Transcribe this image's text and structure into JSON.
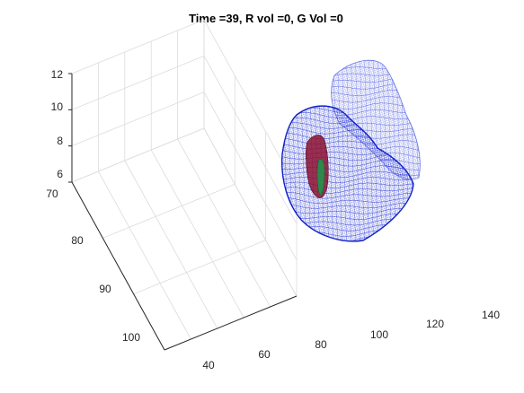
{
  "chart_data": {
    "type": "surface-3d",
    "title": "Time =39, R vol =0, G Vol =0",
    "x_ticks": [
      "40",
      "60",
      "80",
      "100",
      "120",
      "140"
    ],
    "y_ticks": [
      "70",
      "80",
      "90",
      "100"
    ],
    "z_ticks": [
      "6",
      "8",
      "10",
      "12"
    ],
    "xlim": [
      35,
      140
    ],
    "ylim": [
      70,
      105
    ],
    "zlim": [
      6,
      12
    ],
    "grid": true,
    "series": [
      {
        "color": "#1f2fd6"
      },
      {
        "color": "#8b1030"
      },
      {
        "color": "#1a9a4a"
      }
    ]
  }
}
